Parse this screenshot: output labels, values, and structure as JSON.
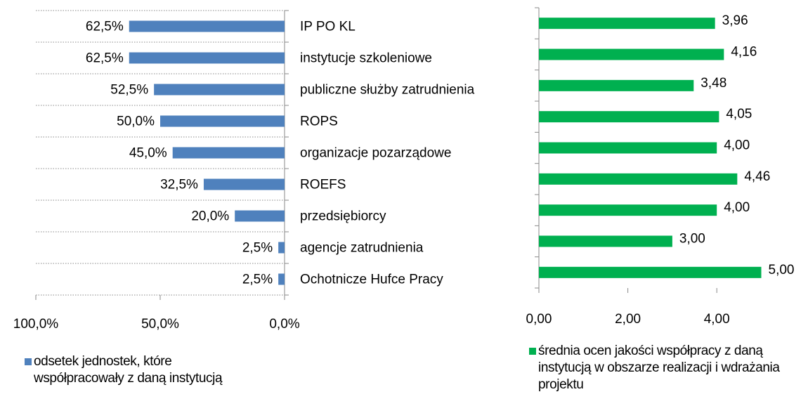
{
  "chart_data": [
    {
      "type": "bar",
      "orientation": "horizontal",
      "reversed": true,
      "categories": [
        "IP PO KL",
        "instytucje szkoleniowe",
        "publiczne służby zatrudnienia",
        "ROPS",
        "organizacje pozarządowe",
        "ROEFS",
        "przedsiębiorcy",
        "agencje zatrudnienia",
        "Ochotnicze Hufce Pracy"
      ],
      "series": [
        {
          "name": "odsetek jednostek, które współpracowały z daną instytucją",
          "color": "#4f81bd",
          "values": [
            62.5,
            62.5,
            52.5,
            50.0,
            45.0,
            32.5,
            20.0,
            2.5,
            2.5
          ],
          "value_labels": [
            "62,5%",
            "62,5%",
            "52,5%",
            "50,0%",
            "45,0%",
            "32,5%",
            "20,0%",
            "2,5%",
            "2,5%"
          ]
        }
      ],
      "xlim": [
        0,
        100
      ],
      "xticks": [
        {
          "value": 100,
          "label": "100,0%"
        },
        {
          "value": 50,
          "label": "50,0%"
        },
        {
          "value": 0,
          "label": "0,0%"
        }
      ],
      "grid": true
    },
    {
      "type": "bar",
      "orientation": "horizontal",
      "reversed": false,
      "series": [
        {
          "name": "średnia ocen jakości współpracy z daną instytucją w obszarze realizacji i wdrażania projektu",
          "color": "#00b050",
          "values": [
            3.96,
            4.16,
            3.48,
            4.05,
            4.0,
            4.46,
            4.0,
            3.0,
            5.0
          ],
          "value_labels": [
            "3,96",
            "4,16",
            "3,48",
            "4,05",
            "4,00",
            "4,46",
            "4,00",
            "3,00",
            "5,00"
          ]
        }
      ],
      "xlim": [
        0,
        5
      ],
      "xticks": [
        {
          "value": 0,
          "label": "0,00"
        },
        {
          "value": 2,
          "label": "2,00"
        },
        {
          "value": 4,
          "label": "4,00"
        }
      ],
      "grid": false
    }
  ]
}
